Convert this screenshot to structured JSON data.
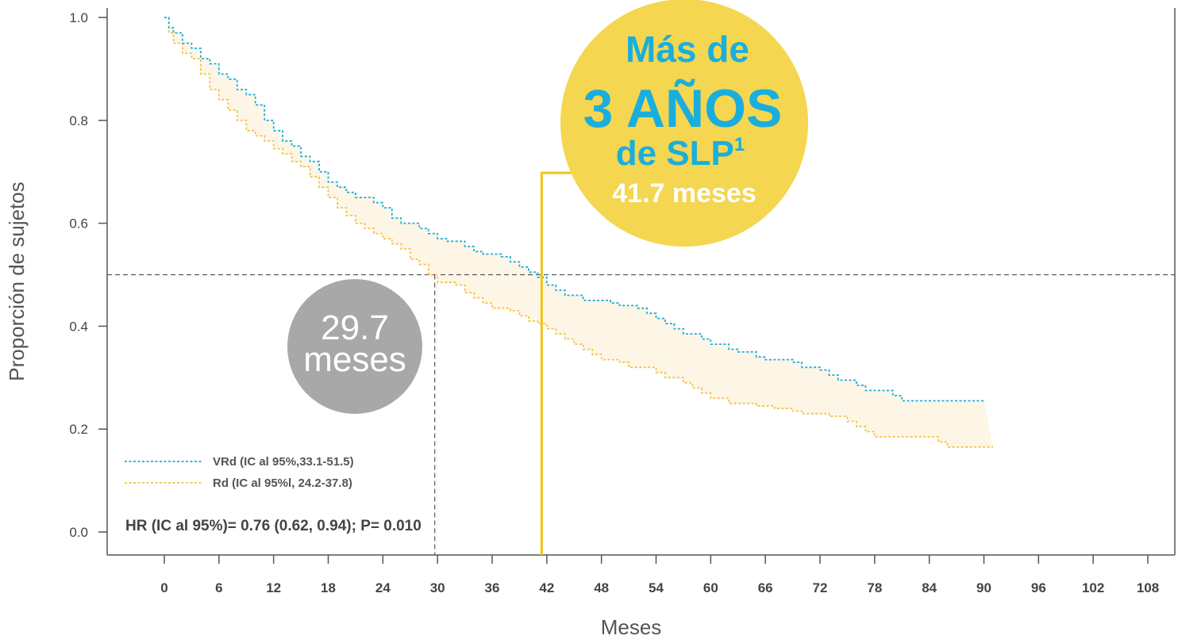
{
  "chart_data": {
    "type": "line",
    "xlabel": "Meses",
    "ylabel": "Proporción de sujetos",
    "xlim": [
      0,
      108
    ],
    "ylim": [
      0,
      1.0
    ],
    "x_ticks": [
      0,
      6,
      12,
      18,
      24,
      30,
      36,
      42,
      48,
      54,
      60,
      66,
      72,
      78,
      84,
      90,
      96,
      102,
      108
    ],
    "y_ticks": [
      "0.0",
      "0.2",
      "0.4",
      "0.6",
      "0.8",
      "1.0"
    ],
    "reference_line_y": 0.5,
    "series": [
      {
        "name": "VRd (IC al 95%,33.1-51.5)",
        "color": "#1aaedc",
        "style": "dotted-step",
        "points": [
          [
            0,
            1.0
          ],
          [
            0.5,
            0.98
          ],
          [
            1,
            0.97
          ],
          [
            2,
            0.95
          ],
          [
            3,
            0.94
          ],
          [
            4,
            0.92
          ],
          [
            5,
            0.91
          ],
          [
            6,
            0.89
          ],
          [
            7,
            0.88
          ],
          [
            8,
            0.86
          ],
          [
            9,
            0.85
          ],
          [
            10,
            0.83
          ],
          [
            11,
            0.8
          ],
          [
            12,
            0.78
          ],
          [
            13,
            0.76
          ],
          [
            14,
            0.75
          ],
          [
            15,
            0.73
          ],
          [
            16,
            0.72
          ],
          [
            17,
            0.7
          ],
          [
            18,
            0.68
          ],
          [
            19,
            0.67
          ],
          [
            20,
            0.66
          ],
          [
            21,
            0.65
          ],
          [
            23,
            0.64
          ],
          [
            24,
            0.63
          ],
          [
            25,
            0.61
          ],
          [
            26,
            0.6
          ],
          [
            28,
            0.59
          ],
          [
            29,
            0.58
          ],
          [
            30,
            0.57
          ],
          [
            31,
            0.565
          ],
          [
            33,
            0.555
          ],
          [
            34,
            0.545
          ],
          [
            35,
            0.54
          ],
          [
            37,
            0.535
          ],
          [
            38,
            0.525
          ],
          [
            39,
            0.515
          ],
          [
            40,
            0.505
          ],
          [
            41,
            0.495
          ],
          [
            42,
            0.48
          ],
          [
            43,
            0.47
          ],
          [
            44,
            0.46
          ],
          [
            46,
            0.45
          ],
          [
            49,
            0.445
          ],
          [
            50,
            0.44
          ],
          [
            52,
            0.435
          ],
          [
            53,
            0.425
          ],
          [
            54,
            0.415
          ],
          [
            55,
            0.405
          ],
          [
            56,
            0.395
          ],
          [
            57,
            0.385
          ],
          [
            59,
            0.375
          ],
          [
            60,
            0.365
          ],
          [
            62,
            0.355
          ],
          [
            63,
            0.35
          ],
          [
            65,
            0.34
          ],
          [
            66,
            0.335
          ],
          [
            69,
            0.33
          ],
          [
            70,
            0.32
          ],
          [
            72,
            0.315
          ],
          [
            73,
            0.305
          ],
          [
            74,
            0.295
          ],
          [
            76,
            0.285
          ],
          [
            77,
            0.275
          ],
          [
            80,
            0.265
          ],
          [
            81,
            0.255
          ],
          [
            90,
            0.255
          ]
        ]
      },
      {
        "name": "Rd (IC al 95%l, 24.2-37.8)",
        "color": "#f5c242",
        "style": "dotted-step",
        "points": [
          [
            0,
            1.0
          ],
          [
            0.5,
            0.97
          ],
          [
            1,
            0.95
          ],
          [
            2,
            0.93
          ],
          [
            3,
            0.92
          ],
          [
            4,
            0.89
          ],
          [
            5,
            0.86
          ],
          [
            6,
            0.84
          ],
          [
            7,
            0.82
          ],
          [
            8,
            0.8
          ],
          [
            9,
            0.78
          ],
          [
            10,
            0.77
          ],
          [
            11,
            0.76
          ],
          [
            12,
            0.745
          ],
          [
            13,
            0.735
          ],
          [
            14,
            0.72
          ],
          [
            15,
            0.71
          ],
          [
            16,
            0.69
          ],
          [
            17,
            0.67
          ],
          [
            18,
            0.65
          ],
          [
            19,
            0.63
          ],
          [
            20,
            0.615
          ],
          [
            21,
            0.6
          ],
          [
            22,
            0.59
          ],
          [
            23,
            0.58
          ],
          [
            24,
            0.57
          ],
          [
            25,
            0.56
          ],
          [
            26,
            0.55
          ],
          [
            27,
            0.53
          ],
          [
            28,
            0.52
          ],
          [
            29,
            0.5
          ],
          [
            30,
            0.485
          ],
          [
            32,
            0.48
          ],
          [
            33,
            0.465
          ],
          [
            34,
            0.455
          ],
          [
            35,
            0.445
          ],
          [
            36,
            0.435
          ],
          [
            38,
            0.43
          ],
          [
            39,
            0.42
          ],
          [
            40,
            0.41
          ],
          [
            41,
            0.405
          ],
          [
            42,
            0.395
          ],
          [
            43,
            0.385
          ],
          [
            44,
            0.375
          ],
          [
            45,
            0.365
          ],
          [
            46,
            0.355
          ],
          [
            47,
            0.345
          ],
          [
            48,
            0.335
          ],
          [
            50,
            0.33
          ],
          [
            51,
            0.32
          ],
          [
            54,
            0.31
          ],
          [
            55,
            0.3
          ],
          [
            57,
            0.29
          ],
          [
            58,
            0.28
          ],
          [
            59,
            0.27
          ],
          [
            60,
            0.26
          ],
          [
            62,
            0.25
          ],
          [
            65,
            0.245
          ],
          [
            67,
            0.24
          ],
          [
            69,
            0.235
          ],
          [
            70,
            0.23
          ],
          [
            73,
            0.225
          ],
          [
            75,
            0.215
          ],
          [
            76,
            0.205
          ],
          [
            77,
            0.195
          ],
          [
            78,
            0.185
          ],
          [
            85,
            0.175
          ],
          [
            86,
            0.165
          ],
          [
            91,
            0.165
          ]
        ]
      }
    ],
    "annotations": {
      "hr": "HR (IC al 95%)= 0.76 (0.62, 0.94); P= 0.010",
      "median_rd": {
        "x": 29.7,
        "line1": "29.7",
        "line2": "meses"
      },
      "median_vrd": {
        "x": 41.7,
        "line1": "Más de",
        "line2": "3 AÑOS",
        "line3": "de SLP",
        "line3_sup": "1",
        "line4": "41.7 meses"
      }
    }
  },
  "colors": {
    "vrd": "#1aaedc",
    "rd": "#f5c242",
    "band_fill": "#fdf6e6",
    "yellow_circle": "#f4d650",
    "yellow_line": "#f0c419",
    "grey_circle": "#a9a8a8",
    "axis": "#555555"
  }
}
